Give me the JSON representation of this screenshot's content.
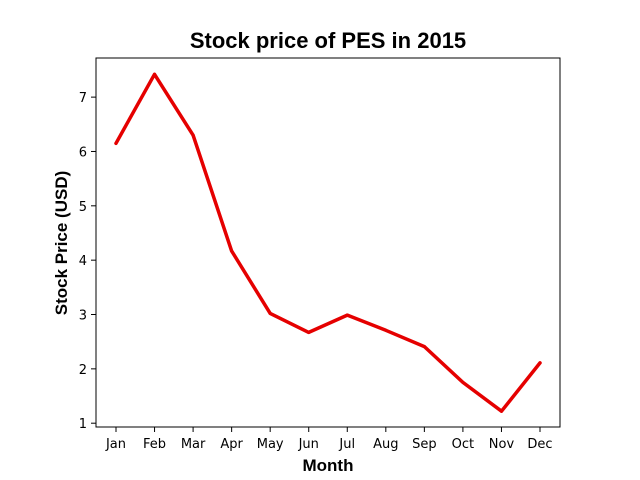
{
  "chart_data": {
    "type": "line",
    "title": "Stock price of PES in 2015",
    "xlabel": "Month",
    "ylabel": "Stock Price (USD)",
    "categories": [
      "Jan",
      "Feb",
      "Mar",
      "Apr",
      "May",
      "Jun",
      "Jul",
      "Aug",
      "Sep",
      "Oct",
      "Nov",
      "Dec"
    ],
    "series": [
      {
        "values": [
          6.15,
          7.42,
          6.3,
          4.17,
          3.02,
          2.67,
          2.99,
          2.71,
          2.41,
          1.75,
          1.22,
          2.11
        ],
        "color": "#e50000"
      }
    ],
    "yticks": [
      1,
      2,
      3,
      4,
      5,
      6,
      7
    ],
    "ylim": [
      0.93,
      7.72
    ],
    "grid": false,
    "legend": "none"
  }
}
